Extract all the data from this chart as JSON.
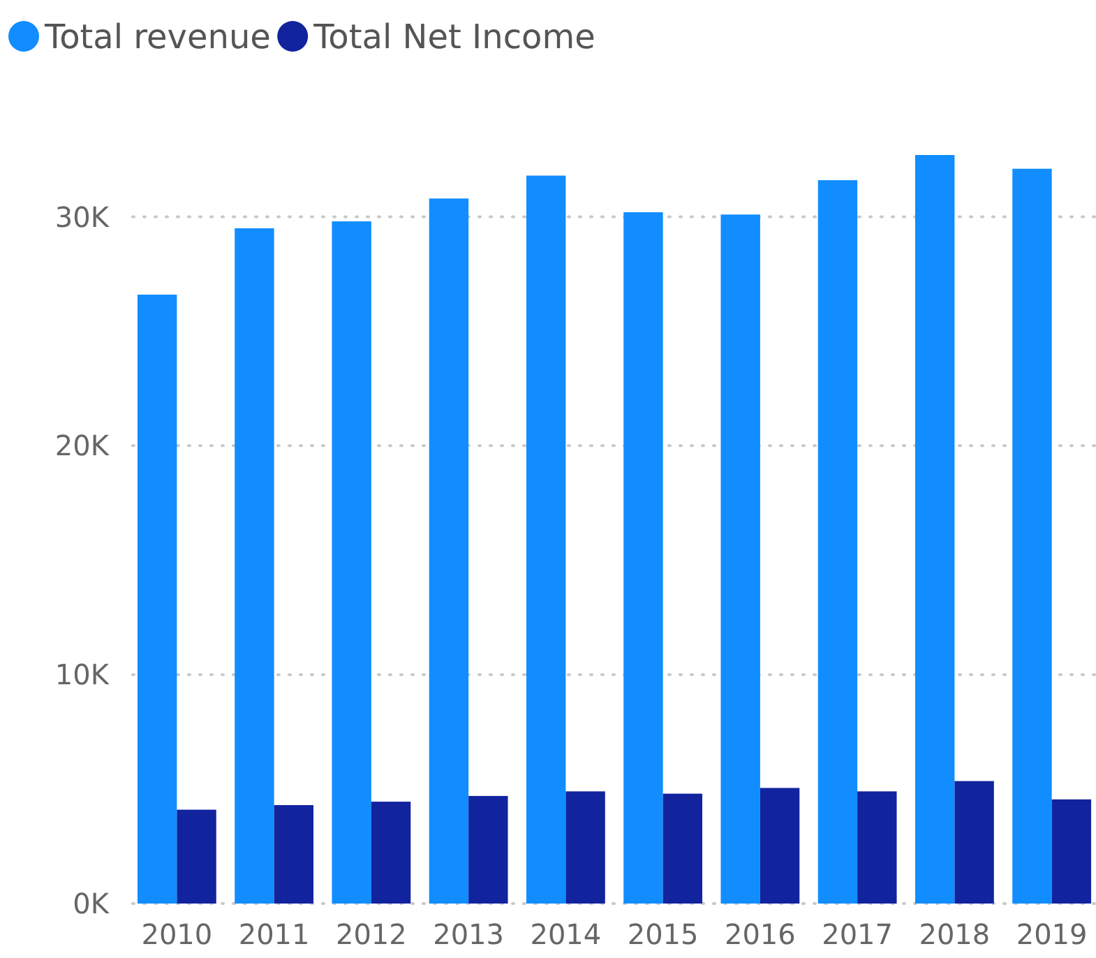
{
  "chart_data": {
    "type": "bar",
    "categories": [
      "2010",
      "2011",
      "2012",
      "2013",
      "2014",
      "2015",
      "2016",
      "2017",
      "2018",
      "2019"
    ],
    "series": [
      {
        "name": "Total revenue",
        "color": "#118dff",
        "values": [
          26600,
          29500,
          29800,
          30800,
          31800,
          30200,
          30100,
          31600,
          32700,
          32100
        ]
      },
      {
        "name": "Total Net Income",
        "color": "#12239e",
        "values": [
          4100,
          4300,
          4450,
          4700,
          4900,
          4800,
          5050,
          4900,
          5350,
          4550
        ]
      }
    ],
    "ylim": [
      0,
      32700
    ],
    "yticks": [
      {
        "value": 0,
        "label": "0K"
      },
      {
        "value": 10000,
        "label": "10K"
      },
      {
        "value": 20000,
        "label": "20K"
      },
      {
        "value": 30000,
        "label": "30K"
      }
    ],
    "grid": "y",
    "legend": "top left"
  }
}
